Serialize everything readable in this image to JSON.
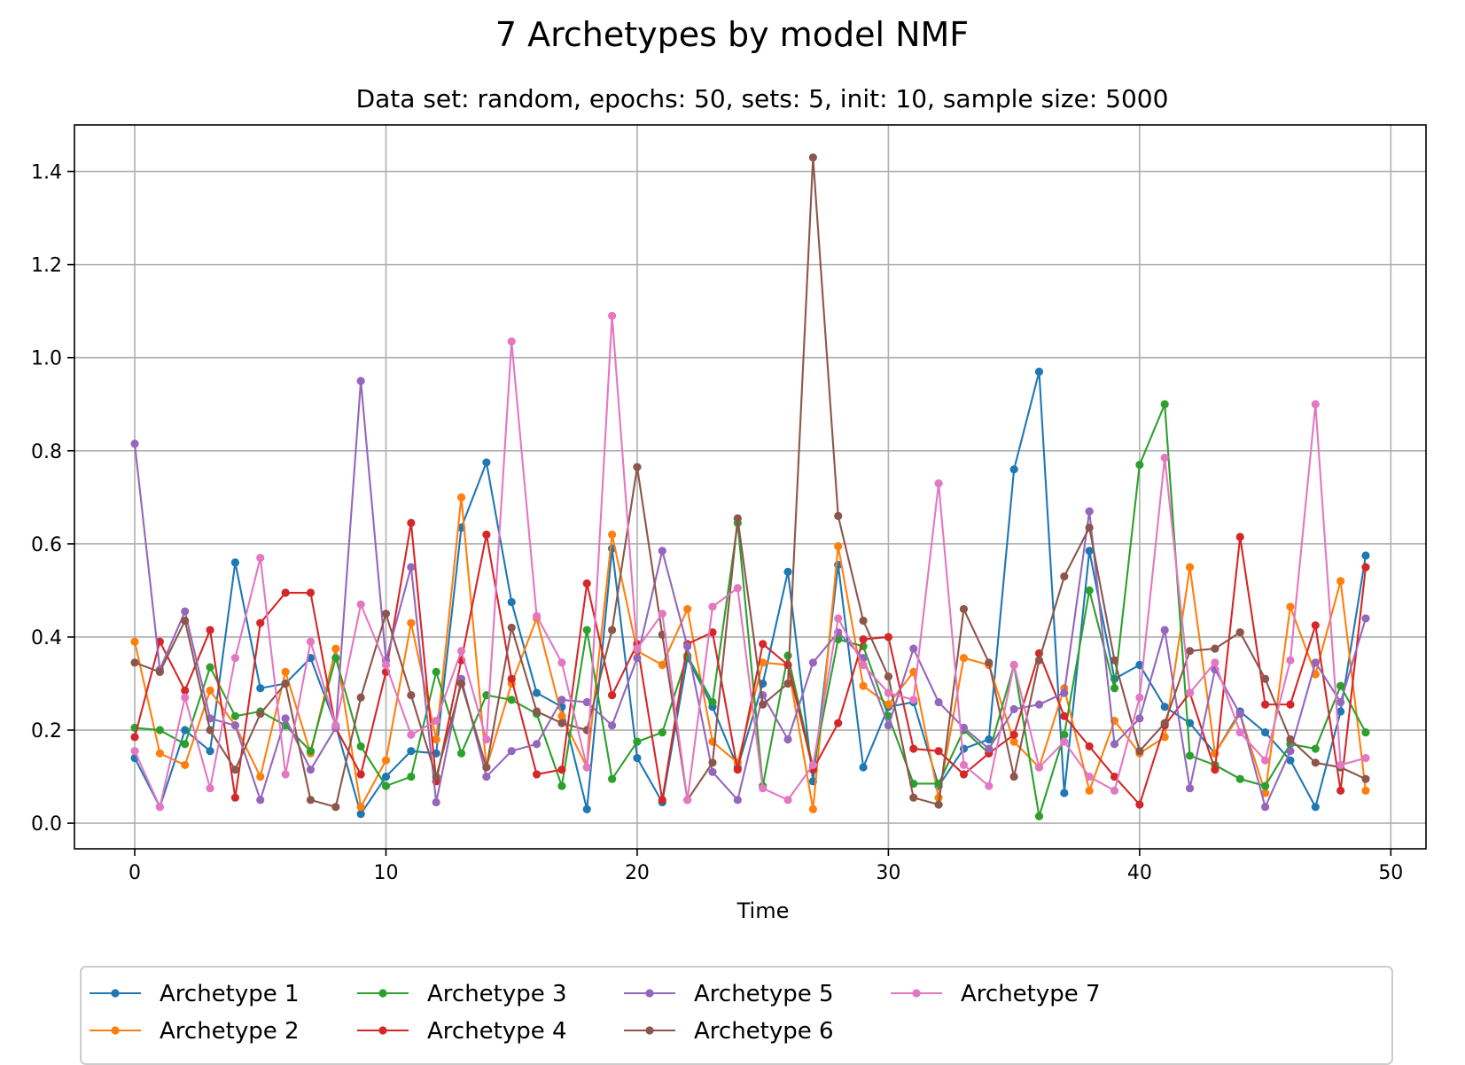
{
  "chart_data": {
    "type": "line",
    "title": "7 Archetypes by model NMF",
    "subtitle": "Data set: random, epochs: 50, sets: 5, init: 10, sample size: 5000",
    "xlabel": "Time",
    "ylabel": "",
    "xlim": [
      -2.4,
      51.4
    ],
    "ylim": [
      -0.055,
      1.5
    ],
    "xticks": [
      0,
      10,
      20,
      30,
      40,
      50
    ],
    "yticks": [
      0.0,
      0.2,
      0.4,
      0.6,
      0.8,
      1.0,
      1.2,
      1.4
    ],
    "xtick_labels": [
      "0",
      "10",
      "20",
      "30",
      "40",
      "50"
    ],
    "ytick_labels": [
      "0.0",
      "0.2",
      "0.4",
      "0.6",
      "0.8",
      "1.0",
      "1.2",
      "1.4"
    ],
    "grid": true,
    "legend": "bottom-center",
    "x": [
      0,
      1,
      2,
      3,
      4,
      5,
      6,
      7,
      8,
      9,
      10,
      11,
      12,
      13,
      14,
      15,
      16,
      17,
      18,
      19,
      20,
      21,
      22,
      23,
      24,
      25,
      26,
      27,
      28,
      29,
      30,
      31,
      32,
      33,
      34,
      35,
      36,
      37,
      38,
      39,
      40,
      41,
      42,
      43,
      44,
      45,
      46,
      47,
      48,
      49
    ],
    "series": [
      {
        "name": "Archetype 1",
        "color": "#1f77b4",
        "values": [
          0.14,
          0.035,
          0.2,
          0.155,
          0.56,
          0.29,
          0.3,
          0.355,
          0.21,
          0.02,
          0.1,
          0.155,
          0.15,
          0.635,
          0.775,
          0.475,
          0.28,
          0.25,
          0.03,
          0.59,
          0.14,
          0.045,
          0.355,
          0.25,
          0.12,
          0.3,
          0.54,
          0.09,
          0.555,
          0.12,
          0.25,
          0.26,
          0.08,
          0.16,
          0.18,
          0.76,
          0.97,
          0.065,
          0.585,
          0.31,
          0.34,
          0.25,
          0.215,
          0.15,
          0.24,
          0.195,
          0.135,
          0.035,
          0.24,
          0.575
        ]
      },
      {
        "name": "Archetype 2",
        "color": "#ff7f0e",
        "values": [
          0.39,
          0.15,
          0.125,
          0.285,
          0.21,
          0.1,
          0.325,
          0.15,
          0.375,
          0.035,
          0.135,
          0.43,
          0.18,
          0.7,
          0.12,
          0.3,
          0.44,
          0.23,
          0.12,
          0.62,
          0.37,
          0.34,
          0.46,
          0.175,
          0.13,
          0.345,
          0.34,
          0.03,
          0.595,
          0.295,
          0.255,
          0.325,
          0.055,
          0.355,
          0.34,
          0.175,
          0.12,
          0.29,
          0.07,
          0.22,
          0.15,
          0.185,
          0.55,
          0.15,
          0.235,
          0.065,
          0.465,
          0.32,
          0.52,
          0.07
        ]
      },
      {
        "name": "Archetype 3",
        "color": "#2ca02c",
        "values": [
          0.205,
          0.2,
          0.17,
          0.335,
          0.23,
          0.24,
          0.21,
          0.155,
          0.355,
          0.165,
          0.08,
          0.1,
          0.325,
          0.15,
          0.275,
          0.265,
          0.235,
          0.08,
          0.415,
          0.095,
          0.175,
          0.195,
          0.36,
          0.26,
          0.645,
          0.08,
          0.36,
          0.12,
          0.395,
          0.38,
          0.23,
          0.085,
          0.085,
          0.2,
          0.15,
          0.34,
          0.015,
          0.19,
          0.5,
          0.29,
          0.77,
          0.9,
          0.145,
          0.125,
          0.095,
          0.08,
          0.17,
          0.16,
          0.295,
          0.195
        ]
      },
      {
        "name": "Archetype 4",
        "color": "#d62728",
        "values": [
          0.185,
          0.39,
          0.285,
          0.415,
          0.055,
          0.43,
          0.495,
          0.495,
          0.205,
          0.105,
          0.325,
          0.645,
          0.09,
          0.35,
          0.62,
          0.31,
          0.105,
          0.115,
          0.515,
          0.275,
          0.385,
          0.05,
          0.385,
          0.41,
          0.115,
          0.385,
          0.34,
          0.115,
          0.215,
          0.395,
          0.4,
          0.16,
          0.155,
          0.105,
          0.15,
          0.19,
          0.365,
          0.23,
          0.165,
          0.1,
          0.04,
          0.21,
          0.28,
          0.115,
          0.615,
          0.255,
          0.255,
          0.425,
          0.07,
          0.55
        ]
      },
      {
        "name": "Archetype 5",
        "color": "#9467bd",
        "values": [
          0.815,
          0.33,
          0.455,
          0.225,
          0.21,
          0.05,
          0.225,
          0.115,
          0.205,
          0.95,
          0.35,
          0.55,
          0.045,
          0.31,
          0.1,
          0.155,
          0.17,
          0.265,
          0.26,
          0.21,
          0.355,
          0.585,
          0.38,
          0.11,
          0.05,
          0.275,
          0.18,
          0.345,
          0.41,
          0.355,
          0.21,
          0.375,
          0.26,
          0.205,
          0.16,
          0.245,
          0.255,
          0.28,
          0.67,
          0.17,
          0.225,
          0.415,
          0.075,
          0.33,
          0.235,
          0.035,
          0.155,
          0.345,
          0.26,
          0.44
        ]
      },
      {
        "name": "Archetype 6",
        "color": "#8c564b",
        "values": [
          0.345,
          0.325,
          0.435,
          0.2,
          0.115,
          0.235,
          0.3,
          0.05,
          0.035,
          0.27,
          0.45,
          0.275,
          0.1,
          0.3,
          0.12,
          0.42,
          0.24,
          0.215,
          0.2,
          0.415,
          0.765,
          0.405,
          0.05,
          0.13,
          0.655,
          0.255,
          0.3,
          1.43,
          0.66,
          0.435,
          0.315,
          0.055,
          0.04,
          0.46,
          0.345,
          0.1,
          0.35,
          0.53,
          0.635,
          0.35,
          0.155,
          0.215,
          0.37,
          0.375,
          0.41,
          0.31,
          0.18,
          0.13,
          0.12,
          0.095
        ]
      },
      {
        "name": "Archetype 7",
        "color": "#e377c2",
        "values": [
          0.155,
          0.035,
          0.27,
          0.075,
          0.355,
          0.57,
          0.105,
          0.39,
          0.21,
          0.47,
          0.34,
          0.19,
          0.22,
          0.37,
          0.18,
          1.035,
          0.445,
          0.345,
          0.12,
          1.09,
          0.375,
          0.45,
          0.05,
          0.465,
          0.505,
          0.075,
          0.05,
          0.125,
          0.44,
          0.34,
          0.28,
          0.265,
          0.73,
          0.125,
          0.08,
          0.34,
          0.12,
          0.175,
          0.1,
          0.07,
          0.27,
          0.785,
          0.28,
          0.345,
          0.195,
          0.135,
          0.35,
          0.9,
          0.125,
          0.14
        ]
      }
    ]
  }
}
